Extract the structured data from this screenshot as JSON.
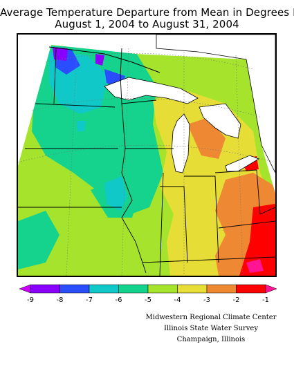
{
  "title": {
    "line1": "Average Temperature Departure from Mean in Degrees F",
    "line2": "August 1, 2004 to August 31, 2004"
  },
  "legend": {
    "bins": [
      {
        "color": "#8a00ff"
      },
      {
        "color": "#2a4dff"
      },
      {
        "color": "#10c8c8"
      },
      {
        "color": "#15d28c"
      },
      {
        "color": "#a6e32c"
      },
      {
        "color": "#e6dd36"
      },
      {
        "color": "#ee8832"
      },
      {
        "color": "#ff0000"
      }
    ],
    "left_arrow_color": "#cc00ff",
    "right_arrow_color": "#ff1493",
    "ticks": [
      "-9",
      "-8",
      "-7",
      "-6",
      "-5",
      "-4",
      "-3",
      "-2",
      "-1"
    ]
  },
  "credits": [
    "Midwestern Regional Climate Center",
    "Illinois State Water Survey",
    "Champaign, Illinois"
  ],
  "map": {
    "zone_colors": {
      "purple": "#8a00ff",
      "blue": "#2a4dff",
      "cyan": "#10c8c8",
      "teal": "#15d28c",
      "lime": "#a6e32c",
      "yellow": "#e6dd36",
      "orange": "#ee8832",
      "red": "#ff0000",
      "magenta": "#ff1493",
      "water": "#ffffff",
      "boundary": "#000000",
      "graticule": "#777777"
    }
  }
}
